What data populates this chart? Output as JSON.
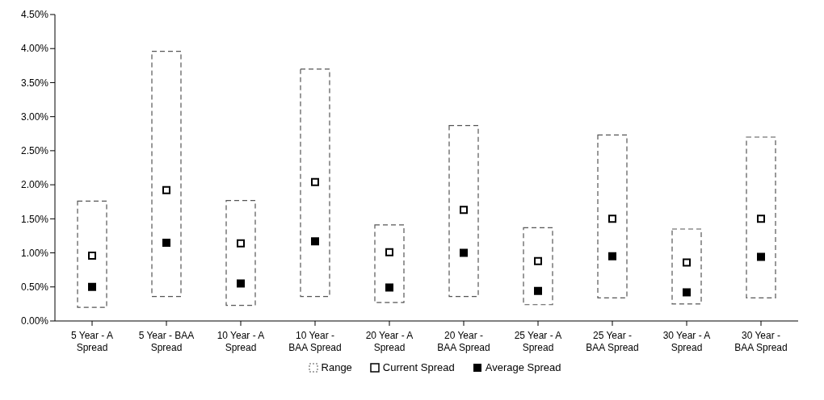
{
  "chart_data": {
    "type": "bar",
    "categories": [
      "5 Year - A Spread",
      "5 Year - BAA Spread",
      "10 Year - A Spread",
      "10 Year - BAA Spread",
      "20 Year - A Spread",
      "20 Year - BAA Spread",
      "25 Year - A Spread",
      "25 Year - BAA Spread",
      "30 Year - A Spread",
      "30 Year - BAA Spread"
    ],
    "series": [
      {
        "name": "Range",
        "color": "#ffffff",
        "base": [
          0.2,
          0.36,
          0.23,
          0.36,
          0.27,
          0.36,
          0.24,
          0.34,
          0.25,
          0.34
        ],
        "values": [
          1.56,
          3.6,
          1.54,
          3.34,
          1.14,
          2.51,
          1.13,
          2.39,
          1.1,
          2.36
        ]
      },
      {
        "name": "Current Spread",
        "type": "scatter",
        "color": "#000000",
        "marker": "square",
        "values": [
          0.96,
          1.92,
          1.14,
          2.04,
          1.01,
          1.63,
          0.88,
          1.5,
          0.86,
          1.5
        ]
      },
      {
        "name": "Average Spread",
        "type": "scatter",
        "color": "#000000",
        "marker": "square",
        "values": [
          0.5,
          1.15,
          0.55,
          1.17,
          0.49,
          1.0,
          0.44,
          0.95,
          0.42,
          0.94
        ]
      }
    ],
    "ylim": [
      0,
      4.5
    ],
    "yticks": [
      {
        "value": 0,
        "label": "0.00%"
      },
      {
        "value": 0.5,
        "label": "0.50%"
      },
      {
        "value": 1,
        "label": "1.00%"
      },
      {
        "value": 1.5,
        "label": "1.50%"
      },
      {
        "value": 2,
        "label": "2.00%"
      },
      {
        "value": 2.5,
        "label": "2.50%"
      },
      {
        "value": 3,
        "label": "3.00%"
      },
      {
        "value": 3.5,
        "label": "3.50%"
      },
      {
        "value": 4,
        "label": "4.00%"
      },
      {
        "value": 4.5,
        "label": "4.50%"
      }
    ],
    "grid": false,
    "legend": "bottom"
  }
}
